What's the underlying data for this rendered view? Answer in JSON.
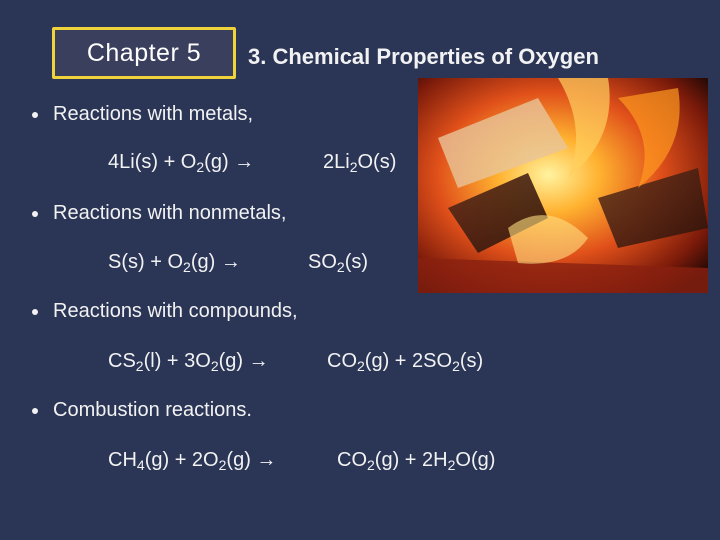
{
  "header": {
    "chapter": "Chapter 5",
    "title": "3. Chemical Properties of Oxygen"
  },
  "items": [
    {
      "text": "Reactions with metals,",
      "equation": {
        "lhs": [
          {
            "text": "4Li(s) + O"
          },
          {
            "sub": "2"
          },
          {
            "text": "(g) →"
          }
        ],
        "rhs": [
          {
            "text": "2Li"
          },
          {
            "sub": "2"
          },
          {
            "text": "O(s)"
          }
        ]
      }
    },
    {
      "text": "Reactions with nonmetals,",
      "equation": {
        "lhs": [
          {
            "text": "S(s) + O"
          },
          {
            "sub": "2"
          },
          {
            "text": "(g) →"
          }
        ],
        "rhs": [
          {
            "text": "SO"
          },
          {
            "sub": "2"
          },
          {
            "text": "(s)"
          }
        ]
      }
    },
    {
      "text": "Reactions with compounds,",
      "equation": {
        "lhs": [
          {
            "text": "CS"
          },
          {
            "sub": "2"
          },
          {
            "text": "(l) + 3O"
          },
          {
            "sub": "2"
          },
          {
            "text": "(g) →"
          }
        ],
        "rhs": [
          {
            "text": "CO"
          },
          {
            "sub": "2"
          },
          {
            "text": "(g) + 2SO"
          },
          {
            "sub": "2"
          },
          {
            "text": "(s)"
          }
        ]
      }
    },
    {
      "text": "Combustion reactions.",
      "equation": {
        "lhs": [
          {
            "text": "CH"
          },
          {
            "sub": "4"
          },
          {
            "text": "(g) + 2O"
          },
          {
            "sub": "2"
          },
          {
            "text": "(g) →"
          }
        ],
        "rhs": [
          {
            "text": "CO"
          },
          {
            "sub": "2"
          },
          {
            "text": "(g) + 2H"
          },
          {
            "sub": "2"
          },
          {
            "text": "O(g)"
          }
        ]
      }
    }
  ]
}
